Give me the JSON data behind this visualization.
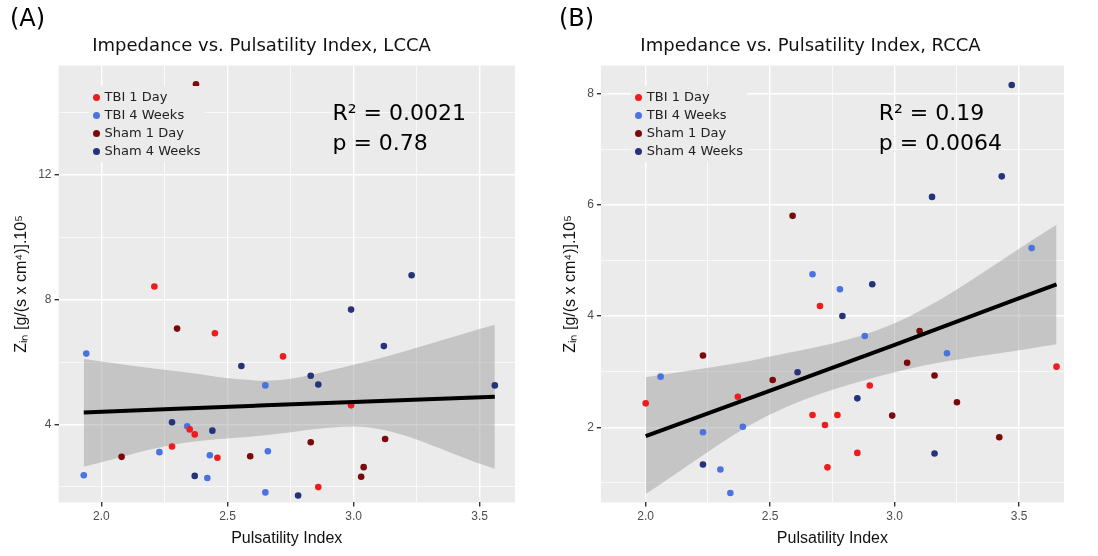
{
  "chart_data": [
    {
      "type": "scatter",
      "title": "Impedance vs. Pulsatility Index, LCCA",
      "xlabel": "Pulsatility Index",
      "ylabel": "Zᵢₙ [g/(s x cm⁴)].10⁵",
      "annotations": [
        "(A)",
        "R² = 0.0021",
        "p = 0.78"
      ],
      "legend": "top left",
      "grid": true,
      "xlim": [
        1.83,
        3.64
      ],
      "xticks": [
        {
          "value": 2,
          "label": "2.0"
        },
        {
          "value": 2.25,
          "label": null
        },
        {
          "value": 2.5,
          "label": "2.5"
        },
        {
          "value": 2.75,
          "label": null
        },
        {
          "value": 3,
          "label": "3.0"
        },
        {
          "value": 3.25,
          "label": null
        },
        {
          "value": 3.5,
          "label": "3.5"
        }
      ],
      "ylim": [
        1.5,
        15.5
      ],
      "yticks": [
        {
          "value": 2,
          "label": null
        },
        4,
        {
          "value": 6,
          "label": null
        },
        8,
        {
          "value": 10,
          "label": null
        },
        12,
        {
          "value": 14,
          "label": null
        }
      ],
      "series": [
        {
          "name": "TBI 1 Day",
          "color": "#ee1c1c",
          "marker": "circle",
          "x": [
            2.21,
            2.45,
            2.72,
            2.35,
            2.37,
            2.28,
            2.46,
            2.86,
            2.99
          ],
          "values": [
            8.42,
            6.92,
            6.18,
            3.84,
            3.68,
            3.29,
            2.93,
            1.99,
            4.61
          ]
        },
        {
          "name": "TBI 4 Weeks",
          "color": "#4a73e0",
          "marker": "circle",
          "x": [
            1.94,
            2.65,
            2.34,
            2.23,
            2.43,
            2.66,
            1.93,
            2.42,
            2.65
          ],
          "values": [
            6.27,
            5.25,
            3.94,
            3.11,
            3.01,
            3.14,
            2.37,
            2.28,
            1.82
          ]
        },
        {
          "name": "Sham 1 Day",
          "color": "#7a0a0a",
          "marker": "circle",
          "x": [
            2.375,
            2.3,
            2.08,
            2.59,
            2.83,
            3.125,
            3.04,
            3.03
          ],
          "values": [
            14.9,
            7.07,
            2.96,
            2.98,
            3.43,
            3.53,
            2.63,
            2.32
          ]
        },
        {
          "name": "Sham 4 Weeks",
          "color": "#24337a",
          "marker": "circle",
          "x": [
            2.555,
            2.83,
            2.86,
            2.28,
            2.44,
            2.37,
            2.78,
            3.23,
            2.99,
            3.12,
            3.56
          ],
          "values": [
            5.87,
            5.56,
            5.28,
            4.07,
            3.8,
            2.35,
            1.72,
            8.78,
            7.68,
            6.51,
            5.25
          ]
        },
        {
          "type": "line",
          "color": "#000000",
          "marker": "none",
          "x": [
            1.93,
            2.3,
            2.65,
            3.0,
            3.56
          ],
          "values": [
            4.38,
            4.5,
            4.61,
            4.72,
            4.89
          ],
          "lower": [
            2.64,
            3.37,
            3.65,
            3.93,
            2.58
          ],
          "upper": [
            6.1,
            5.7,
            5.4,
            5.91,
            7.19
          ]
        }
      ]
    },
    {
      "type": "scatter",
      "title": "Impedance vs. Pulsatility Index, RCCA",
      "xlabel": "Pulsatility Index",
      "ylabel": "Zᵢₙ [g/(s x cm⁴)].10⁵",
      "annotations": [
        "(B)",
        "R² = 0.19",
        "p = 0.0064"
      ],
      "legend": "top left",
      "grid": true,
      "xlim": [
        1.82,
        3.68
      ],
      "xticks": [
        {
          "value": 2,
          "label": "2.0"
        },
        {
          "value": 2.25,
          "label": null
        },
        {
          "value": 2.5,
          "label": "2.5"
        },
        {
          "value": 2.75,
          "label": null
        },
        {
          "value": 3,
          "label": "3.0"
        },
        {
          "value": 3.25,
          "label": null
        },
        {
          "value": 3.5,
          "label": "3.5"
        }
      ],
      "ylim": [
        0.65,
        8.5
      ],
      "yticks": [
        {
          "value": 1,
          "label": null
        },
        2,
        {
          "value": 3,
          "label": null
        },
        4,
        {
          "value": 5,
          "label": null
        },
        6,
        {
          "value": 7,
          "label": null
        },
        8
      ],
      "series": [
        {
          "name": "TBI 1 Day",
          "color": "#ee1c1c",
          "marker": "circle",
          "x": [
            2.0,
            2.37,
            2.7,
            2.67,
            2.72,
            2.73,
            2.77,
            2.9,
            2.85,
            3.65
          ],
          "values": [
            2.43,
            2.55,
            4.18,
            2.22,
            2.04,
            1.28,
            2.22,
            2.75,
            1.54,
            3.09
          ]
        },
        {
          "name": "TBI 4 Weeks",
          "color": "#4a73e0",
          "marker": "circle",
          "x": [
            2.06,
            2.23,
            2.3,
            2.34,
            2.39,
            2.67,
            2.78,
            2.88,
            3.21,
            3.55
          ],
          "values": [
            2.91,
            1.91,
            1.24,
            0.82,
            2.01,
            4.75,
            4.48,
            3.64,
            3.33,
            5.22
          ]
        },
        {
          "name": "Sham 1 Day",
          "color": "#7a0a0a",
          "marker": "circle",
          "x": [
            2.23,
            2.51,
            2.59,
            2.99,
            3.05,
            3.1,
            3.16,
            3.25,
            3.42
          ],
          "values": [
            3.29,
            2.85,
            5.8,
            2.21,
            3.16,
            3.73,
            2.93,
            2.45,
            1.82
          ]
        },
        {
          "name": "Sham 4 Weeks",
          "color": "#24337a",
          "marker": "circle",
          "x": [
            2.23,
            2.61,
            2.79,
            2.91,
            2.85,
            3.15,
            3.16,
            3.43,
            3.47
          ],
          "values": [
            1.33,
            2.99,
            4.0,
            4.57,
            2.52,
            6.14,
            1.53,
            6.51,
            8.15
          ]
        },
        {
          "type": "line",
          "color": "#000000",
          "marker": "none",
          "x": [
            2.0,
            2.5,
            3.0,
            3.65
          ],
          "values": [
            1.84,
            2.66,
            3.48,
            4.57
          ],
          "lower": [
            0.8,
            2.23,
            2.99,
            3.49
          ],
          "upper": [
            2.9,
            3.27,
            3.87,
            5.64
          ]
        }
      ]
    }
  ]
}
